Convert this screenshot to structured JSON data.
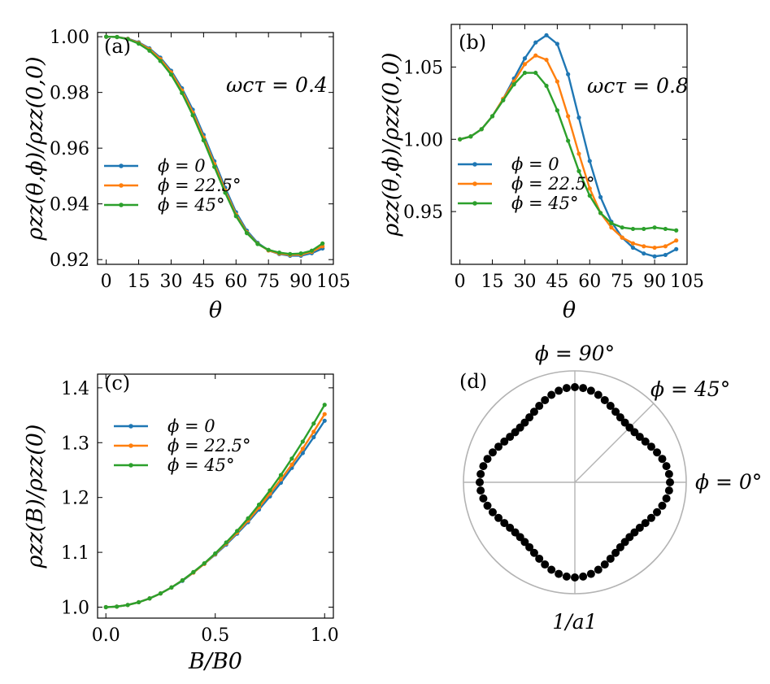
{
  "chart_data": [
    {
      "panel": "(a)",
      "type": "line",
      "xlabel": "θ",
      "ylabel": "ρzz(θ,ϕ)/ρzz(0,0)",
      "annotation": "ωcτ = 0.4",
      "xlim": [
        -4,
        105
      ],
      "ylim": [
        0.9183,
        1.0015
      ],
      "xticks": [
        0,
        15,
        30,
        45,
        60,
        75,
        90,
        105
      ],
      "xtick_labels": [
        "0",
        "15",
        "30",
        "45",
        "60",
        "75",
        "90",
        "105"
      ],
      "yticks": [
        0.92,
        0.94,
        0.96,
        0.98,
        1.0
      ],
      "ytick_labels": [
        "0.92",
        "0.94",
        "0.96",
        "0.98",
        "1.00"
      ],
      "legend_position": "center-left",
      "x": [
        0,
        5,
        10,
        15,
        20,
        25,
        30,
        35,
        40,
        45,
        50,
        55,
        60,
        65,
        70,
        75,
        80,
        85,
        90,
        95,
        100
      ],
      "series": [
        {
          "name": "ϕ = 0",
          "color": "#1f77b4",
          "values": [
            1.0,
            0.9999,
            0.9993,
            0.998,
            0.9958,
            0.9925,
            0.9878,
            0.9815,
            0.9738,
            0.9648,
            0.9553,
            0.9458,
            0.937,
            0.9304,
            0.926,
            0.9233,
            0.922,
            0.9214,
            0.9214,
            0.9223,
            0.924
          ]
        },
        {
          "name": "ϕ = 22.5°",
          "color": "#ff7f0e",
          "values": [
            1.0,
            0.9999,
            0.9992,
            0.9978,
            0.9955,
            0.992,
            0.9872,
            0.9807,
            0.9728,
            0.9638,
            0.9543,
            0.9448,
            0.9362,
            0.9298,
            0.9257,
            0.9233,
            0.9222,
            0.9217,
            0.9218,
            0.9228,
            0.9248
          ]
        },
        {
          "name": "ϕ = 45°",
          "color": "#2ca02c",
          "values": [
            1.0,
            0.9999,
            0.9991,
            0.9975,
            0.995,
            0.9913,
            0.9864,
            0.9798,
            0.9718,
            0.9628,
            0.9533,
            0.944,
            0.9356,
            0.9295,
            0.9256,
            0.9235,
            0.9225,
            0.922,
            0.9222,
            0.9232,
            0.9258
          ]
        }
      ]
    },
    {
      "panel": "(b)",
      "type": "line",
      "xlabel": "θ",
      "ylabel": "ρzz(θ,ϕ)/ρzz(0,0)",
      "annotation": "ωcτ = 0.8",
      "xlim": [
        -4,
        105
      ],
      "ylim": [
        0.9135,
        1.0795
      ],
      "xticks": [
        0,
        15,
        30,
        45,
        60,
        75,
        90,
        105
      ],
      "xtick_labels": [
        "0",
        "15",
        "30",
        "45",
        "60",
        "75",
        "90",
        "105"
      ],
      "yticks": [
        0.95,
        1.0,
        1.05
      ],
      "ytick_labels": [
        "0.95",
        "1.00",
        "1.05"
      ],
      "legend_position": "center-left",
      "x": [
        0,
        5,
        10,
        15,
        20,
        25,
        30,
        35,
        40,
        45,
        50,
        55,
        60,
        65,
        70,
        75,
        80,
        85,
        90,
        95,
        100
      ],
      "series": [
        {
          "name": "ϕ = 0",
          "color": "#1f77b4",
          "values": [
            1.0,
            1.002,
            1.007,
            1.016,
            1.028,
            1.042,
            1.056,
            1.067,
            1.072,
            1.066,
            1.045,
            1.015,
            0.985,
            0.96,
            0.943,
            0.932,
            0.925,
            0.921,
            0.919,
            0.92,
            0.924
          ]
        },
        {
          "name": "ϕ = 22.5°",
          "color": "#ff7f0e",
          "values": [
            1.0,
            1.002,
            1.007,
            1.016,
            1.028,
            1.04,
            1.052,
            1.058,
            1.055,
            1.04,
            1.016,
            0.99,
            0.966,
            0.949,
            0.939,
            0.932,
            0.928,
            0.926,
            0.925,
            0.926,
            0.93
          ]
        },
        {
          "name": "ϕ = 45°",
          "color": "#2ca02c",
          "values": [
            1.0,
            1.002,
            1.007,
            1.016,
            1.027,
            1.038,
            1.046,
            1.046,
            1.037,
            1.02,
            0.999,
            0.978,
            0.961,
            0.949,
            0.942,
            0.939,
            0.938,
            0.938,
            0.939,
            0.938,
            0.937
          ]
        }
      ]
    },
    {
      "panel": "(c)",
      "type": "line",
      "xlabel": "B/B0",
      "ylabel": "ρzz(B)/ρzz(0)",
      "xlim": [
        -0.038,
        1.04
      ],
      "ylim": [
        0.98,
        1.425
      ],
      "xticks": [
        0.0,
        0.5,
        1.0
      ],
      "xtick_labels": [
        "0.0",
        "0.5",
        "1.0"
      ],
      "yticks": [
        1.0,
        1.1,
        1.2,
        1.3,
        1.4
      ],
      "ytick_labels": [
        "1.0",
        "1.1",
        "1.2",
        "1.3",
        "1.4"
      ],
      "legend_position": "upper-left",
      "x": [
        0.0,
        0.05,
        0.1,
        0.15,
        0.2,
        0.25,
        0.3,
        0.35,
        0.4,
        0.45,
        0.5,
        0.55,
        0.6,
        0.65,
        0.7,
        0.75,
        0.8,
        0.85,
        0.9,
        0.95,
        1.0
      ],
      "series": [
        {
          "name": "ϕ = 0",
          "color": "#1f77b4",
          "values": [
            1.0,
            1.001,
            1.004,
            1.009,
            1.016,
            1.025,
            1.036,
            1.048,
            1.063,
            1.079,
            1.096,
            1.114,
            1.134,
            1.155,
            1.178,
            1.202,
            1.227,
            1.254,
            1.281,
            1.31,
            1.34
          ]
        },
        {
          "name": "ϕ = 22.5°",
          "color": "#ff7f0e",
          "values": [
            1.0,
            1.001,
            1.004,
            1.009,
            1.016,
            1.025,
            1.036,
            1.049,
            1.063,
            1.079,
            1.097,
            1.116,
            1.136,
            1.158,
            1.182,
            1.207,
            1.233,
            1.26,
            1.289,
            1.32,
            1.352
          ]
        },
        {
          "name": "ϕ = 45°",
          "color": "#2ca02c",
          "values": [
            1.0,
            1.001,
            1.004,
            1.009,
            1.016,
            1.025,
            1.036,
            1.049,
            1.064,
            1.08,
            1.098,
            1.118,
            1.139,
            1.162,
            1.187,
            1.213,
            1.241,
            1.271,
            1.302,
            1.335,
            1.369
          ]
        }
      ]
    },
    {
      "panel": "(d)",
      "type": "scatter",
      "projection": "polar",
      "radial_label": "1/a1",
      "angle_labels": [
        "ϕ = 90°",
        "ϕ = 45°",
        "ϕ = 0°"
      ],
      "angles_deg": [
        0,
        5,
        10,
        15,
        20,
        25,
        30,
        35,
        40,
        45,
        50,
        55,
        60,
        65,
        70,
        75,
        80,
        85,
        90,
        95,
        100,
        105,
        110,
        115,
        120,
        125,
        130,
        135,
        140,
        145,
        150,
        155,
        160,
        165,
        170,
        175,
        180,
        185,
        190,
        195,
        200,
        205,
        210,
        215,
        220,
        225,
        230,
        235,
        240,
        245,
        250,
        255,
        260,
        265,
        270,
        275,
        280,
        285,
        290,
        295,
        300,
        305,
        310,
        315,
        320,
        325,
        330,
        335,
        340,
        345,
        350,
        355
      ],
      "radius_relative": [
        1.0,
        0.994,
        0.977,
        0.951,
        0.919,
        0.886,
        0.856,
        0.833,
        0.819,
        0.814,
        0.819,
        0.833,
        0.856,
        0.886,
        0.919,
        0.951,
        0.977,
        0.994,
        1.0,
        0.994,
        0.977,
        0.951,
        0.919,
        0.886,
        0.856,
        0.833,
        0.819,
        0.814,
        0.819,
        0.833,
        0.856,
        0.886,
        0.919,
        0.951,
        0.977,
        0.994,
        1.0,
        0.994,
        0.977,
        0.951,
        0.919,
        0.886,
        0.856,
        0.833,
        0.819,
        0.814,
        0.819,
        0.833,
        0.856,
        0.886,
        0.919,
        0.951,
        0.977,
        0.994,
        1.0,
        0.994,
        0.977,
        0.951,
        0.919,
        0.886,
        0.856,
        0.833,
        0.819,
        0.814,
        0.819,
        0.833,
        0.856,
        0.886,
        0.919,
        0.951,
        0.977,
        0.994
      ],
      "marker_color": "#000000"
    }
  ]
}
